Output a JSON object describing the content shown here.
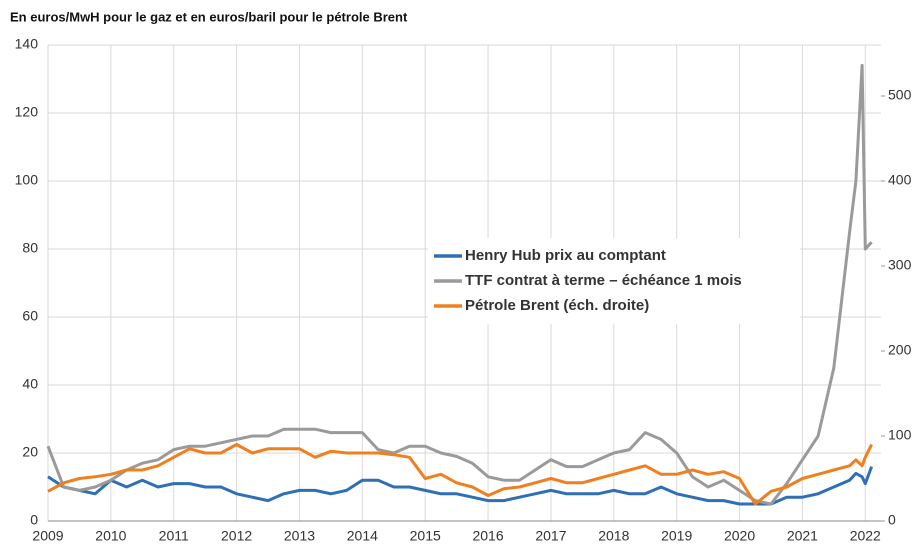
{
  "chart_data": {
    "type": "line",
    "title": "En euros/MwH pour le gaz et en euros/baril pour le pétrole Brent",
    "x": [
      2009,
      2009.25,
      2009.5,
      2009.75,
      2010,
      2010.25,
      2010.5,
      2010.75,
      2011,
      2011.25,
      2011.5,
      2011.75,
      2012,
      2012.25,
      2012.5,
      2012.75,
      2013,
      2013.25,
      2013.5,
      2013.75,
      2014,
      2014.25,
      2014.5,
      2014.75,
      2015,
      2015.25,
      2015.5,
      2015.75,
      2016,
      2016.25,
      2016.5,
      2016.75,
      2017,
      2017.25,
      2017.5,
      2017.75,
      2018,
      2018.25,
      2018.5,
      2018.75,
      2019,
      2019.25,
      2019.5,
      2019.75,
      2020,
      2020.25,
      2020.5,
      2020.75,
      2021,
      2021.25,
      2021.5,
      2021.75,
      2021.85,
      2021.95,
      2022,
      2022.1
    ],
    "series": [
      {
        "name": "Henry Hub prix au comptant",
        "color": "#2e6fb5",
        "values": [
          13,
          10,
          9,
          8,
          12,
          10,
          12,
          10,
          11,
          11,
          10,
          10,
          8,
          7,
          6,
          8,
          9,
          9,
          8,
          9,
          12,
          12,
          10,
          10,
          9,
          8,
          8,
          7,
          6,
          6,
          7,
          8,
          9,
          8,
          8,
          8,
          9,
          8,
          8,
          10,
          8,
          7,
          6,
          6,
          5,
          5,
          5,
          7,
          7,
          8,
          10,
          12,
          14,
          13,
          11,
          16
        ]
      },
      {
        "name": "TTF contrat à terme – échéance 1 mois",
        "color": "#9a9a9a",
        "values": [
          22,
          10,
          9,
          10,
          12,
          15,
          17,
          18,
          21,
          22,
          22,
          23,
          24,
          25,
          25,
          27,
          27,
          27,
          26,
          26,
          26,
          21,
          20,
          22,
          22,
          20,
          19,
          17,
          13,
          12,
          12,
          15,
          18,
          16,
          16,
          18,
          20,
          21,
          26,
          24,
          20,
          13,
          10,
          12,
          9,
          6,
          5,
          11,
          18,
          25,
          45,
          85,
          100,
          134,
          80,
          82
        ]
      },
      {
        "name": "Pétrole Brent (éch. droite)",
        "color": "#f07f1f",
        "axis": "y2",
        "values": [
          35,
          45,
          50,
          52,
          55,
          60,
          60,
          65,
          75,
          85,
          80,
          80,
          90,
          80,
          85,
          85,
          85,
          75,
          82,
          80,
          80,
          80,
          78,
          75,
          50,
          55,
          45,
          40,
          30,
          38,
          40,
          45,
          50,
          45,
          45,
          50,
          55,
          60,
          65,
          55,
          55,
          60,
          55,
          58,
          50,
          20,
          35,
          40,
          50,
          55,
          60,
          65,
          72,
          65,
          75,
          90
        ]
      }
    ],
    "xlim": [
      2009,
      2022.25
    ],
    "xticks": [
      2009,
      2010,
      2011,
      2012,
      2013,
      2014,
      2015,
      2016,
      2017,
      2018,
      2019,
      2020,
      2021,
      2022
    ],
    "ylim": [
      0,
      140
    ],
    "yticks": [
      0,
      20,
      40,
      60,
      80,
      100,
      120,
      140
    ],
    "y2lim": [
      0,
      560
    ],
    "y2ticks": [
      0,
      100,
      200,
      300,
      400,
      500
    ],
    "grid": true
  }
}
